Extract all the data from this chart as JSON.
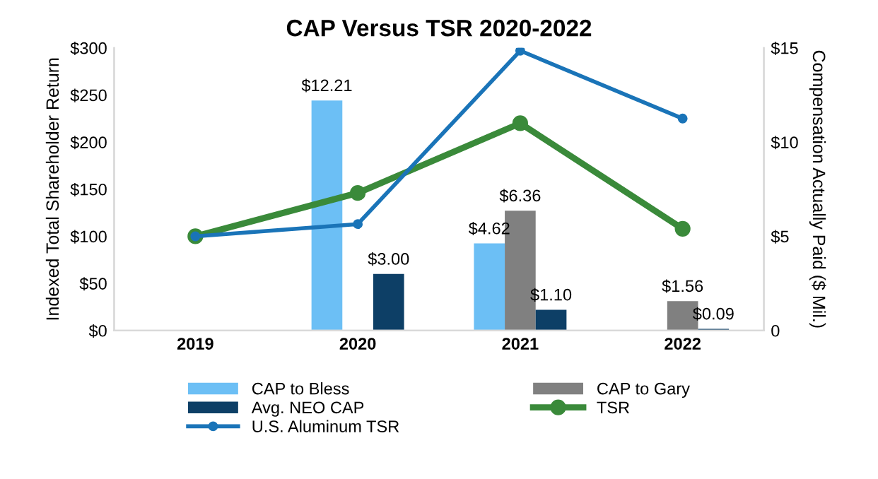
{
  "chart_data": {
    "type": "bar",
    "title": "CAP Versus TSR 2020-2022",
    "ylabel": "Indexed Total Shareholder Return",
    "y2label": "Compensation Actually Paid ($ Mil.)",
    "categories": [
      "2019",
      "2020",
      "2021",
      "2022"
    ],
    "ylim": [
      0,
      300
    ],
    "yticks": [
      {
        "value": 0,
        "label": "$0"
      },
      {
        "value": 50,
        "label": "$50"
      },
      {
        "value": 100,
        "label": "$100"
      },
      {
        "value": 150,
        "label": "$150"
      },
      {
        "value": 200,
        "label": "$200"
      },
      {
        "value": 250,
        "label": "$250"
      },
      {
        "value": 300,
        "label": "$300"
      }
    ],
    "y2lim": [
      0,
      15
    ],
    "y2ticks": [
      0,
      {
        "value": 5,
        "label": "$5"
      },
      {
        "value": 10,
        "label": "$10"
      },
      {
        "value": 15,
        "label": "$15"
      }
    ],
    "legend": "bottom",
    "grid": false,
    "marker": "circle",
    "series": [
      {
        "name": "CAP to Bless",
        "axis": "y2",
        "color": "#6cbff5",
        "values": [
          null,
          12.21,
          4.62,
          null
        ],
        "value_labels": [
          null,
          "$12.21",
          "$4.62",
          null
        ]
      },
      {
        "name": "CAP to Gary",
        "axis": "y2",
        "color": "#808080",
        "values": [
          null,
          null,
          6.36,
          1.56
        ],
        "value_labels": [
          null,
          null,
          "$6.36",
          "$1.56"
        ]
      },
      {
        "name": "Avg. NEO CAP",
        "axis": "y2",
        "color": "#0d3f66",
        "values": [
          null,
          3.0,
          1.1,
          0.09
        ],
        "value_labels": [
          null,
          "$3.00",
          "$1.10",
          "$0.09"
        ]
      },
      {
        "name": "TSR",
        "type": "line",
        "axis": "y",
        "color": "#3a8a3a",
        "values": [
          100,
          146,
          220,
          108
        ]
      },
      {
        "name": "U.S. Aluminum TSR",
        "type": "line",
        "axis": "y",
        "color": "#1a74b8",
        "values": [
          100,
          113,
          297,
          225
        ]
      }
    ]
  }
}
